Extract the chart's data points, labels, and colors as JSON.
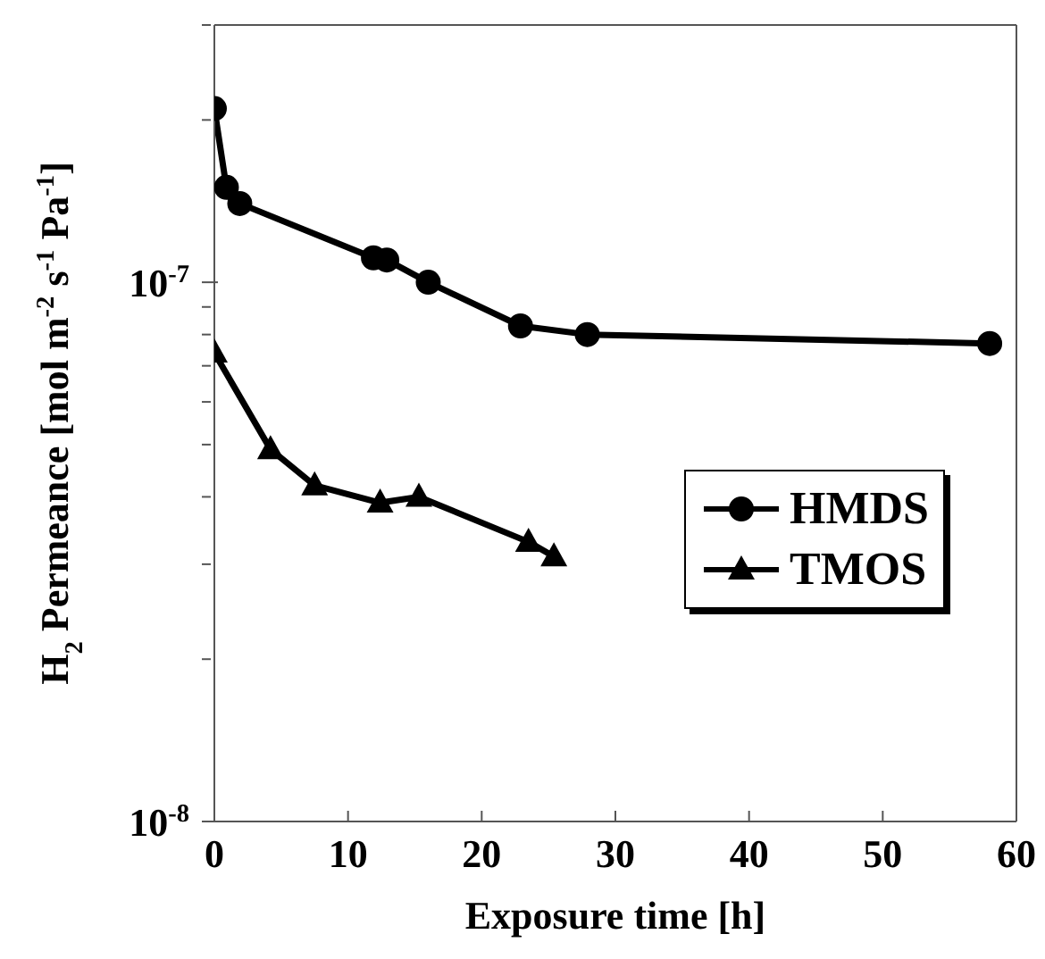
{
  "chart_data": {
    "type": "line",
    "xlabel": "Exposure time [h]",
    "ylabel": "H$_{2}$ Permeance [mol m$^{-2}$ s$^{-1}$ Pa$^{-1}$]",
    "log": "y",
    "xlim": [
      0,
      60
    ],
    "xticks": [
      0,
      10,
      20,
      30,
      40,
      50,
      60
    ],
    "ylim": [
      1e-08,
      3e-07
    ],
    "yticks": [
      {
        "value": 1e-08,
        "label": "10$^{-8}$"
      },
      {
        "value": 2e-08,
        "label": null
      },
      {
        "value": 3e-08,
        "label": null
      },
      {
        "value": 4e-08,
        "label": null
      },
      {
        "value": 5e-08,
        "label": null
      },
      {
        "value": 6e-08,
        "label": null
      },
      {
        "value": 7e-08,
        "label": null
      },
      {
        "value": 8e-08,
        "label": null
      },
      {
        "value": 9e-08,
        "label": null
      },
      {
        "value": 1e-07,
        "label": "10$^{-7}$"
      },
      {
        "value": 2e-07,
        "label": null
      },
      {
        "value": 3e-07,
        "label": null
      }
    ],
    "grid": false,
    "legend": "right",
    "line_style": "solid",
    "series": [
      {
        "name": "HMDS",
        "color": "#000000",
        "marker": "circle",
        "x": [
          0,
          0.9,
          1.9,
          11.9,
          12.9,
          16,
          22.9,
          27.9,
          58
        ],
        "values": [
          2.1e-07,
          1.5e-07,
          1.4e-07,
          1.11e-07,
          1.1e-07,
          1e-07,
          8.3e-08,
          8e-08,
          7.7e-08
        ]
      },
      {
        "name": "TMOS",
        "color": "#000000",
        "marker": "triangle",
        "x": [
          0,
          4.2,
          7.5,
          12.4,
          15.3,
          23.5,
          25.4
        ],
        "values": [
          7.4e-08,
          4.9e-08,
          4.2e-08,
          3.9e-08,
          4e-08,
          3.3e-08,
          3.1e-08
        ]
      }
    ]
  }
}
